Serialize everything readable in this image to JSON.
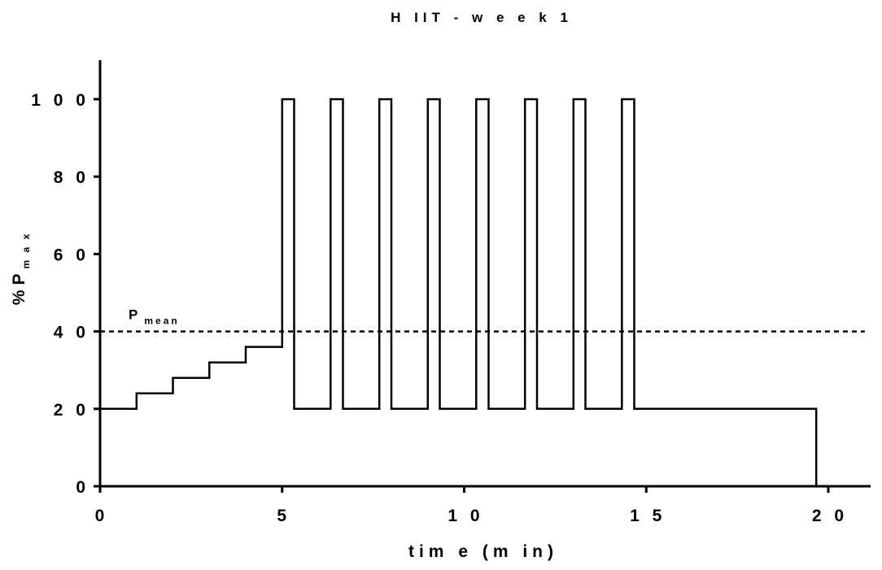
{
  "chart_data": {
    "type": "line",
    "title": "H IIT  -  w e e k  1",
    "xlabel": "tim e  (m in)",
    "ylabel_main": "%P",
    "ylabel_sub": "m a x",
    "xlim": [
      0,
      21
    ],
    "ylim": [
      0,
      110
    ],
    "x_ticks": [
      0,
      5,
      10,
      15,
      20
    ],
    "y_ticks": [
      0,
      20,
      40,
      60,
      80,
      100
    ],
    "x_tick_labels": [
      "0",
      "5",
      "1 0",
      "1 5",
      "2 0"
    ],
    "y_tick_labels": [
      "0",
      "2 0",
      "4 0",
      "6 0",
      "8 0",
      "1 0 0"
    ],
    "grid": false,
    "series": [
      {
        "style": "solid",
        "x": [
          0,
          1,
          1,
          2,
          2,
          3,
          3,
          4,
          4,
          5,
          5,
          5.33,
          5.33,
          6.33,
          6.33,
          6.67,
          6.67,
          7.67,
          7.67,
          8.0,
          8.0,
          9.0,
          9.0,
          9.33,
          9.33,
          10.33,
          10.33,
          10.67,
          10.67,
          11.67,
          11.67,
          12.0,
          12.0,
          13.0,
          13.0,
          13.33,
          13.33,
          14.33,
          14.33,
          14.67,
          14.67,
          19.67,
          19.67
        ],
        "y": [
          20,
          20,
          24,
          24,
          28,
          28,
          32,
          32,
          36,
          36,
          100,
          100,
          20,
          20,
          100,
          100,
          20,
          20,
          100,
          100,
          20,
          20,
          100,
          100,
          20,
          20,
          100,
          100,
          20,
          20,
          100,
          100,
          20,
          20,
          100,
          100,
          20,
          20,
          100,
          100,
          20,
          20,
          0
        ]
      },
      {
        "style": "dashed",
        "x": [
          0,
          21
        ],
        "y": [
          40,
          40
        ]
      }
    ],
    "annotations": [
      {
        "text": "P",
        "sub": "mean",
        "x": 1,
        "y": 40
      }
    ]
  }
}
